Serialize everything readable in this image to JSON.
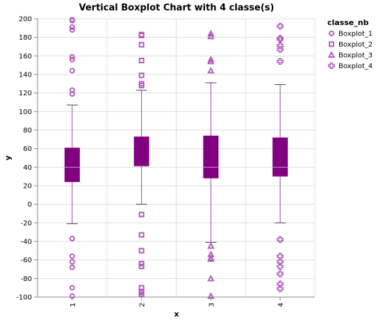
{
  "chart_data": {
    "type": "boxplot",
    "title": "Vertical Boxplot Chart with 4 classe(s)",
    "xlabel": "x",
    "ylabel": "y",
    "ylim": [
      -100,
      200
    ],
    "yticks": [
      -100,
      -80,
      -60,
      -40,
      -20,
      0,
      20,
      40,
      60,
      80,
      100,
      120,
      140,
      160,
      180,
      200
    ],
    "categories": [
      "1",
      "2",
      "3",
      "4"
    ],
    "grid": true,
    "legend": {
      "title": "classe_nb",
      "position": "right"
    },
    "series": [
      {
        "name": "Boxplot_1",
        "category": "1",
        "shape": "circle",
        "q1": 24,
        "median": 40,
        "q3": 61,
        "whisker_low": -21,
        "whisker_high": 107,
        "outliers": [
          199,
          198,
          191,
          188,
          159,
          156,
          144,
          123,
          119,
          -37,
          -56,
          -62,
          -68,
          -90,
          -99
        ]
      },
      {
        "name": "Boxplot_2",
        "category": "2",
        "shape": "square",
        "q1": 41,
        "median": 41,
        "q3": 73,
        "whisker_low": 0,
        "whisker_high": 123,
        "outliers": [
          183,
          182,
          172,
          155,
          139,
          130,
          128,
          -11,
          -33,
          -50,
          -64,
          -67,
          -90,
          -94,
          -95,
          -97
        ]
      },
      {
        "name": "Boxplot_3",
        "category": "3",
        "shape": "triangle",
        "q1": 28,
        "median": 40,
        "q3": 74,
        "whisker_low": -41,
        "whisker_high": 131,
        "outliers": [
          184,
          181,
          156,
          154,
          144,
          -45,
          -54,
          -58,
          -59,
          -80,
          -99
        ]
      },
      {
        "name": "Boxplot_4",
        "category": "4",
        "shape": "cross",
        "q1": 30,
        "median": 40,
        "q3": 72,
        "whisker_low": -20,
        "whisker_high": 129,
        "outliers": [
          192,
          179,
          178,
          171,
          167,
          154,
          -38,
          -56,
          -62,
          -67,
          -75,
          -86,
          -91
        ]
      }
    ],
    "colors": {
      "box": "#800080",
      "outlier": "#b45cc0",
      "whisker": "#9a3fa8",
      "grid": "#dddddd",
      "axis": "#888888"
    }
  }
}
